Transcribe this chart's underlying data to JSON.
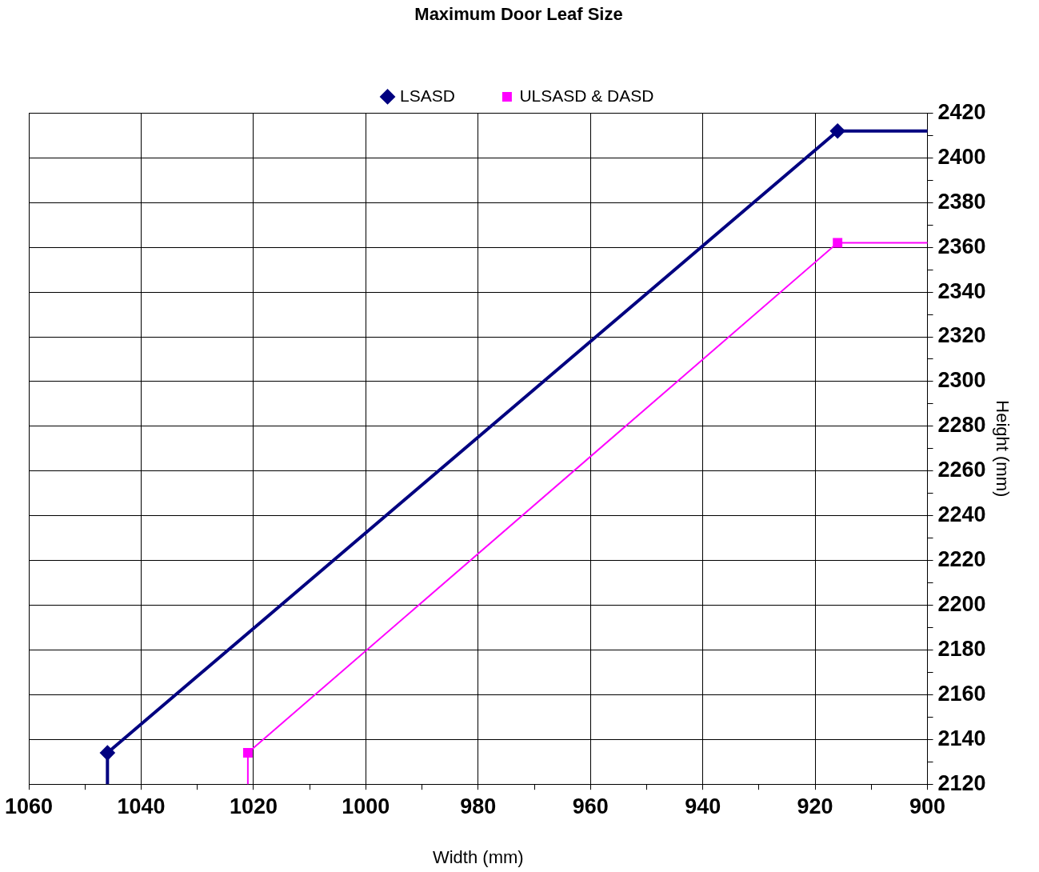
{
  "chart_data": {
    "type": "line",
    "title": "Maximum Door Leaf Size",
    "xlabel": "Width (mm)",
    "ylabel": "Height (mm)",
    "xlim": [
      1060,
      900
    ],
    "ylim": [
      2120,
      2420
    ],
    "xticks": [
      1060,
      {
        "value": 1050,
        "label": null
      },
      1040,
      {
        "value": 1030,
        "label": null
      },
      1020,
      {
        "value": 1010,
        "label": null
      },
      1000,
      {
        "value": 990,
        "label": null
      },
      980,
      {
        "value": 970,
        "label": null
      },
      960,
      {
        "value": 950,
        "label": null
      },
      940,
      {
        "value": 930,
        "label": null
      },
      920,
      {
        "value": 910,
        "label": null
      },
      900
    ],
    "yticks": [
      2120,
      {
        "value": 2130,
        "label": null
      },
      2140,
      {
        "value": 2150,
        "label": null
      },
      2160,
      {
        "value": 2170,
        "label": null
      },
      2180,
      {
        "value": 2190,
        "label": null
      },
      2200,
      {
        "value": 2210,
        "label": null
      },
      2220,
      {
        "value": 2230,
        "label": null
      },
      2240,
      {
        "value": 2250,
        "label": null
      },
      2260,
      {
        "value": 2270,
        "label": null
      },
      2280,
      {
        "value": 2290,
        "label": null
      },
      2300,
      {
        "value": 2310,
        "label": null
      },
      2320,
      {
        "value": 2330,
        "label": null
      },
      2340,
      {
        "value": 2350,
        "label": null
      },
      2360,
      {
        "value": 2370,
        "label": null
      },
      2380,
      {
        "value": 2390,
        "label": null
      },
      2400,
      {
        "value": 2410,
        "label": null
      },
      2420
    ],
    "series": [
      {
        "name": "LSASD",
        "color": "#000080",
        "marker": "diamond",
        "x": [
          1046,
          1046,
          916,
          900
        ],
        "values": [
          2120,
          2134,
          2412,
          2412
        ]
      },
      {
        "name": "ULSASD & DASD",
        "color": "#ff00ff",
        "marker": "square",
        "x": [
          1021,
          1021,
          916,
          900
        ],
        "values": [
          2120,
          2134,
          2362,
          2362
        ]
      }
    ],
    "grid": true,
    "legend": "top"
  }
}
